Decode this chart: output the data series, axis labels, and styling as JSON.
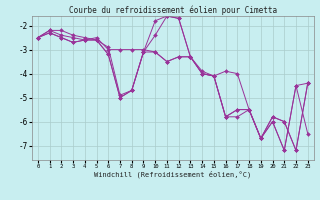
{
  "title": "Courbe du refroidissement éolien pour Cimetta",
  "xlabel": "Windchill (Refroidissement éolien,°C)",
  "ylabel": "",
  "bg_color": "#c8eef0",
  "line_color": "#993399",
  "grid_color": "#aacccc",
  "xlim": [
    -0.5,
    23.5
  ],
  "ylim": [
    -7.6,
    -1.6
  ],
  "yticks": [
    -7,
    -6,
    -5,
    -4,
    -3,
    -2
  ],
  "xticks": [
    0,
    1,
    2,
    3,
    4,
    5,
    6,
    7,
    8,
    9,
    10,
    11,
    12,
    13,
    14,
    15,
    16,
    17,
    18,
    19,
    20,
    21,
    22,
    23
  ],
  "series": [
    [
      -2.5,
      -2.2,
      -2.2,
      -2.4,
      -2.5,
      -2.6,
      -2.9,
      -4.9,
      -4.7,
      -3.1,
      -1.8,
      -1.6,
      -1.7,
      -3.3,
      -4.0,
      -4.1,
      -5.8,
      -5.5,
      -5.5,
      -6.7,
      -6.0,
      -7.2,
      -4.5,
      -6.5
    ],
    [
      -2.5,
      -2.2,
      -2.4,
      -2.5,
      -2.6,
      -2.5,
      -3.0,
      -3.0,
      -3.0,
      -3.0,
      -3.1,
      -3.5,
      -3.3,
      -3.3,
      -4.0,
      -4.1,
      -5.8,
      -5.8,
      -5.5,
      -6.7,
      -6.0,
      -7.2,
      -4.5,
      -4.4
    ],
    [
      -2.5,
      -2.3,
      -2.5,
      -2.7,
      -2.6,
      -2.6,
      -3.2,
      -5.0,
      -4.7,
      -3.1,
      -3.1,
      -3.5,
      -3.3,
      -3.3,
      -3.9,
      -4.1,
      -3.9,
      -4.0,
      -5.5,
      -6.7,
      -5.8,
      -6.0,
      -7.2,
      -4.4
    ],
    [
      -2.5,
      -2.3,
      -2.5,
      -2.7,
      -2.6,
      -2.6,
      -3.2,
      -5.0,
      -4.7,
      -3.1,
      -2.4,
      -1.6,
      -1.7,
      -3.3,
      -4.0,
      -4.1,
      -5.8,
      -5.5,
      -5.5,
      -6.7,
      -5.8,
      -6.0,
      -7.2,
      -4.4
    ]
  ]
}
